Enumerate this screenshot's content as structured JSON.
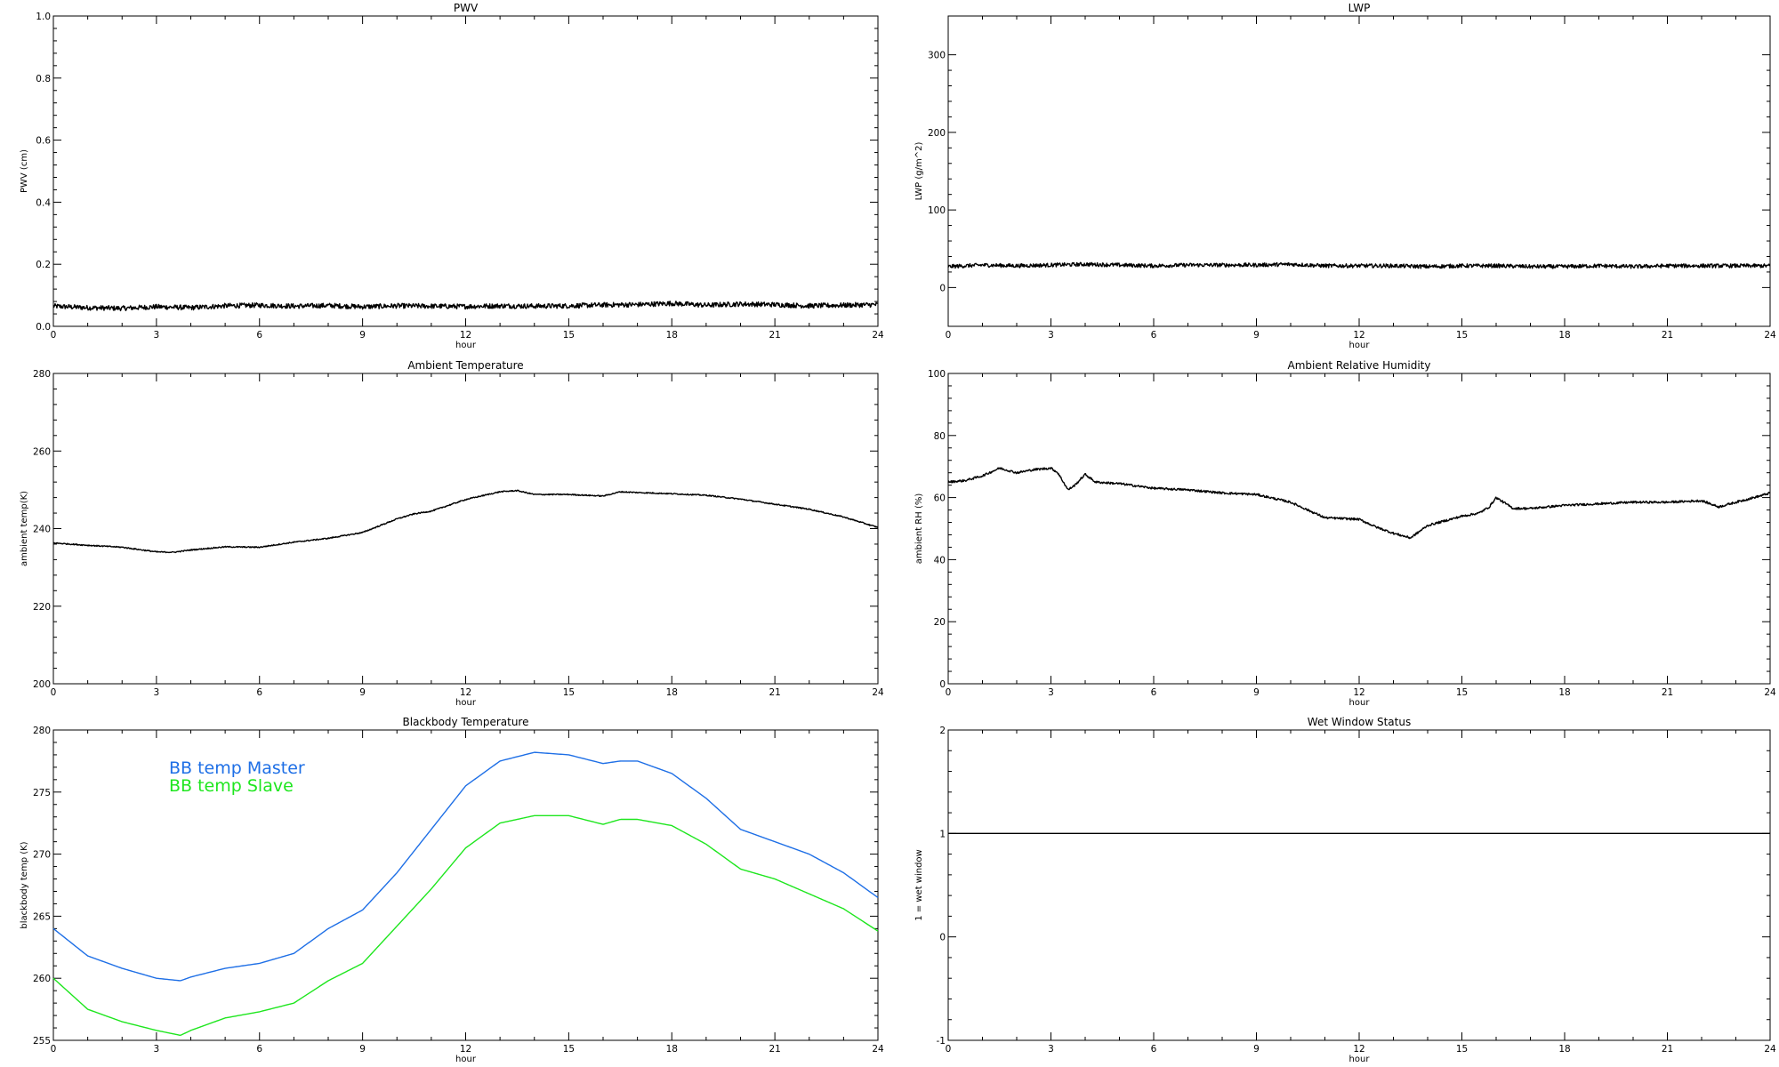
{
  "chart_data": [
    {
      "id": "pwv",
      "type": "line",
      "title": "PWV",
      "xlabel": "hour",
      "ylabel": "PWV (cm)",
      "xlim": [
        0,
        24
      ],
      "ylim": [
        0,
        1
      ],
      "xticks": [
        0,
        3,
        6,
        9,
        12,
        15,
        18,
        21,
        24
      ],
      "yticks": [
        "0.0",
        "0.2",
        "0.4",
        "0.6",
        "0.8",
        "1.0"
      ],
      "ytick_values": [
        0,
        0.2,
        0.4,
        0.6,
        0.8,
        1.0
      ],
      "noise": 0.008,
      "series": [
        {
          "color": "#000000",
          "x": [
            0,
            1,
            2,
            3,
            4,
            5,
            6,
            7,
            8,
            9,
            10,
            11,
            12,
            13,
            14,
            15,
            16,
            17,
            18,
            19,
            20,
            21,
            22,
            23,
            24
          ],
          "y": [
            0.065,
            0.06,
            0.058,
            0.063,
            0.06,
            0.066,
            0.068,
            0.065,
            0.067,
            0.063,
            0.066,
            0.065,
            0.064,
            0.066,
            0.065,
            0.066,
            0.069,
            0.07,
            0.074,
            0.068,
            0.072,
            0.07,
            0.066,
            0.068,
            0.07
          ]
        }
      ]
    },
    {
      "id": "lwp",
      "type": "line",
      "title": "LWP",
      "xlabel": "hour",
      "ylabel": "LWP (g/m^2)",
      "xlim": [
        0,
        24
      ],
      "ylim": [
        -50,
        350
      ],
      "xticks": [
        0,
        3,
        6,
        9,
        12,
        15,
        18,
        21,
        24
      ],
      "yticks": [
        "0",
        "100",
        "200",
        "300"
      ],
      "ytick_values": [
        0,
        100,
        200,
        300
      ],
      "noise": 2.5,
      "series": [
        {
          "color": "#000000",
          "x": [
            0,
            1,
            2,
            3,
            4,
            5,
            6,
            7,
            8,
            9,
            10,
            11,
            12,
            13,
            14,
            15,
            16,
            17,
            18,
            19,
            20,
            21,
            22,
            23,
            24
          ],
          "y": [
            27,
            29,
            28,
            29,
            30,
            29,
            28,
            29,
            29,
            29,
            30,
            28,
            28,
            28,
            27,
            28,
            28,
            27,
            27,
            28,
            27,
            28,
            28,
            28,
            28
          ]
        }
      ]
    },
    {
      "id": "ambient_temp",
      "type": "line",
      "title": "Ambient Temperature",
      "xlabel": "hour",
      "ylabel": "ambient temp(K)",
      "xlim": [
        0,
        24
      ],
      "ylim": [
        200,
        280
      ],
      "xticks": [
        0,
        3,
        6,
        9,
        12,
        15,
        18,
        21,
        24
      ],
      "yticks": [
        "200",
        "220",
        "240",
        "260",
        "280"
      ],
      "ytick_values": [
        200,
        220,
        240,
        260,
        280
      ],
      "noise": 0.15,
      "series": [
        {
          "color": "#000000",
          "x": [
            0,
            1,
            2,
            3,
            3.5,
            4,
            5,
            6,
            7,
            8,
            9,
            10,
            10.5,
            11,
            12,
            13,
            13.5,
            14,
            15,
            16,
            16.5,
            17,
            18,
            19,
            20,
            21,
            22,
            23,
            24
          ],
          "y": [
            236.3,
            235.7,
            235.2,
            234,
            233.9,
            234.5,
            235.3,
            235.2,
            236.5,
            237.5,
            239,
            242.5,
            243.8,
            244.5,
            247.5,
            249.5,
            249.8,
            248.8,
            248.8,
            248.4,
            249.5,
            249.3,
            249,
            248.6,
            247.6,
            246.3,
            245,
            243,
            240.3
          ]
        }
      ]
    },
    {
      "id": "ambient_rh",
      "type": "line",
      "title": "Ambient Relative Humidity",
      "xlabel": "hour",
      "ylabel": "ambient RH (%)",
      "xlim": [
        0,
        24
      ],
      "ylim": [
        0,
        100
      ],
      "xticks": [
        0,
        3,
        6,
        9,
        12,
        15,
        18,
        21,
        24
      ],
      "yticks": [
        "0",
        "20",
        "40",
        "60",
        "80",
        "100"
      ],
      "ytick_values": [
        0,
        20,
        40,
        60,
        80,
        100
      ],
      "noise": 0.35,
      "series": [
        {
          "color": "#000000",
          "x": [
            0,
            0.5,
            1,
            1.5,
            2,
            2.5,
            3,
            3.2,
            3.5,
            3.7,
            4,
            4.3,
            5,
            6,
            7,
            8,
            9,
            10,
            10.5,
            11,
            12,
            12.5,
            13,
            13.5,
            14,
            14.5,
            15,
            15.5,
            15.8,
            16,
            16.5,
            17,
            18,
            19,
            20,
            21,
            22,
            22.5,
            23,
            23.7,
            24
          ],
          "y": [
            65,
            65.5,
            67,
            69.5,
            68,
            69,
            69.5,
            68,
            62.5,
            64,
            67.5,
            65,
            64.5,
            63,
            62.5,
            61.5,
            61,
            58.5,
            56,
            53.5,
            53,
            50.5,
            48.5,
            47,
            51,
            52.5,
            54,
            55,
            57,
            60,
            56.5,
            56.5,
            57.5,
            58,
            58.5,
            58.5,
            59,
            57,
            58.5,
            60.5,
            61.5
          ]
        }
      ]
    },
    {
      "id": "blackbody",
      "type": "line",
      "title": "Blackbody Temperature",
      "xlabel": "hour",
      "ylabel": "blackbody temp (K)",
      "xlim": [
        0,
        24
      ],
      "ylim": [
        255,
        280
      ],
      "xticks": [
        0,
        3,
        6,
        9,
        12,
        15,
        18,
        21,
        24
      ],
      "yticks": [
        "255",
        "260",
        "265",
        "270",
        "275",
        "280"
      ],
      "ytick_values": [
        255,
        260,
        265,
        270,
        275,
        280
      ],
      "noise": 0,
      "legend": "upper-left",
      "series": [
        {
          "name": "BB temp Master",
          "color": "#1e6fe6",
          "x": [
            0,
            1,
            2,
            3,
            3.7,
            4,
            5,
            6,
            7,
            8,
            9,
            10,
            11,
            12,
            13,
            14,
            15,
            16,
            16.5,
            17,
            18,
            19,
            20,
            21,
            22,
            23,
            24
          ],
          "y": [
            264,
            261.8,
            260.8,
            260,
            259.8,
            260.1,
            260.8,
            261.2,
            262,
            264,
            265.5,
            268.5,
            272,
            275.5,
            277.5,
            278.2,
            278,
            277.3,
            277.5,
            277.5,
            276.5,
            274.5,
            272,
            271,
            270,
            268.5,
            266.5
          ]
        },
        {
          "name": "BB temp Slave",
          "color": "#1ee61e",
          "x": [
            0,
            1,
            2,
            3,
            3.7,
            4,
            5,
            6,
            7,
            8,
            9,
            10,
            11,
            12,
            13,
            14,
            15,
            16,
            16.5,
            17,
            18,
            19,
            20,
            21,
            22,
            23,
            24
          ],
          "y": [
            260,
            257.5,
            256.5,
            255.8,
            255.4,
            255.8,
            256.8,
            257.3,
            258,
            259.8,
            261.2,
            264.2,
            267.2,
            270.5,
            272.5,
            273.1,
            273.1,
            272.4,
            272.8,
            272.8,
            272.3,
            270.8,
            268.8,
            268,
            266.8,
            265.6,
            263.8
          ]
        }
      ]
    },
    {
      "id": "wet_window",
      "type": "line",
      "title": "Wet Window Status",
      "xlabel": "hour",
      "ylabel": "1 = wet window",
      "xlim": [
        0,
        24
      ],
      "ylim": [
        -1,
        2
      ],
      "xticks": [
        0,
        3,
        6,
        9,
        12,
        15,
        18,
        21,
        24
      ],
      "yticks": [
        "-1",
        "0",
        "1",
        "2"
      ],
      "ytick_values": [
        -1,
        0,
        1,
        2
      ],
      "noise": 0,
      "series": [
        {
          "color": "#000000",
          "x": [
            0,
            24
          ],
          "y": [
            1,
            1
          ]
        }
      ]
    }
  ]
}
